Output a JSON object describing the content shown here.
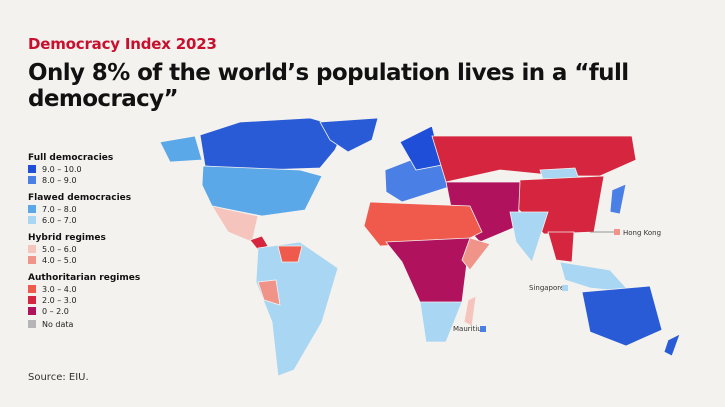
{
  "header": {
    "kicker": "Democracy Index 2023",
    "title": "Only 8% of the world’s population lives in a “full democracy”"
  },
  "legend": {
    "groups": [
      {
        "title": "Full democracies",
        "items": [
          {
            "label": "9.0 – 10.0",
            "color": "#1f4fd8"
          },
          {
            "label": "8.0 – 9.0",
            "color": "#4a7fe6"
          }
        ]
      },
      {
        "title": "Flawed democracies",
        "items": [
          {
            "label": "7.0 – 8.0",
            "color": "#5aa8e8"
          },
          {
            "label": "6.0 – 7.0",
            "color": "#a9d6f3"
          }
        ]
      },
      {
        "title": "Hybrid regimes",
        "items": [
          {
            "label": "5.0 – 6.0",
            "color": "#f5c4bd"
          },
          {
            "label": "4.0 – 5.0",
            "color": "#f0948a"
          }
        ]
      },
      {
        "title": "Authoritarian regimes",
        "items": [
          {
            "label": "3.0 – 4.0",
            "color": "#ef5a4c"
          },
          {
            "label": "2.0 – 3.0",
            "color": "#d6263f"
          },
          {
            "label": "0 – 2.0",
            "color": "#b0125e"
          }
        ]
      }
    ],
    "no_data": {
      "label": "No data",
      "color": "#b5b5b5"
    }
  },
  "map": {
    "callouts": [
      "Hong Kong",
      "Singapore",
      "Mauritius"
    ]
  },
  "source": "Source: EIU."
}
